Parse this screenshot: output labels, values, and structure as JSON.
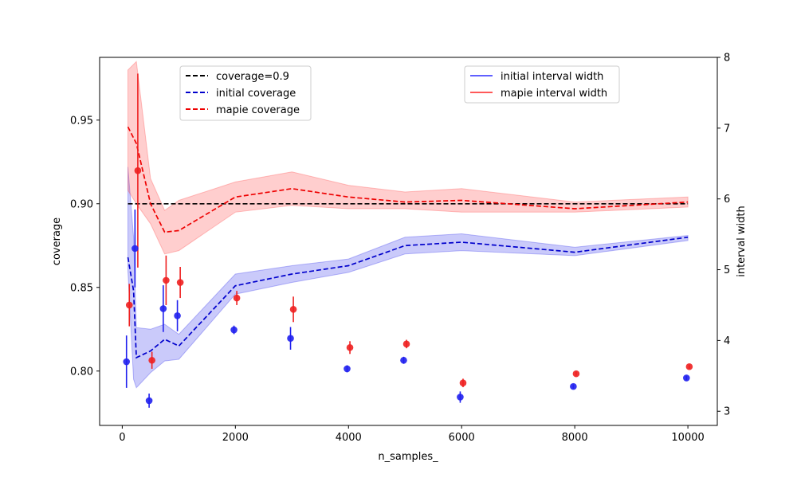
{
  "chart_data": {
    "type": "line",
    "xlabel": "n_samples_",
    "ylabel_left": "coverage",
    "ylabel_right": "interval width",
    "xlim": [
      -400,
      10520
    ],
    "ylim_left": [
      0.7675,
      0.9875
    ],
    "ylim_right": [
      2.8,
      8.0
    ],
    "x_ticks": [
      0,
      2000,
      4000,
      6000,
      8000,
      10000
    ],
    "y_left_ticks": [
      0.8,
      0.85,
      0.9,
      0.95
    ],
    "y_left_tick_labels": [
      "0.80",
      "0.85",
      "0.90",
      "0.95"
    ],
    "y_right_ticks": [
      3,
      4,
      5,
      6,
      7,
      8
    ],
    "grid": false,
    "colors": {
      "target": "#000000",
      "initial": "#0000cc",
      "mapie": "#ee0000",
      "initial_band": "#4040ee",
      "mapie_band": "#ff5050"
    },
    "coverage_target": 0.9,
    "series": [
      {
        "name": "coverage=0.9",
        "axis": "left",
        "style": "dashed",
        "x": [
          100,
          10000
        ],
        "values": [
          0.9,
          0.9
        ]
      },
      {
        "name": "initial coverage",
        "axis": "left",
        "style": "dashed",
        "x": [
          100,
          200,
          250,
          500,
          750,
          1000,
          2000,
          3000,
          4000,
          5000,
          6000,
          8000,
          10000
        ],
        "values": [
          0.868,
          0.848,
          0.808,
          0.812,
          0.819,
          0.815,
          0.851,
          0.858,
          0.863,
          0.875,
          0.877,
          0.871,
          0.88
        ],
        "band_lower": [
          0.86,
          0.795,
          0.79,
          0.799,
          0.806,
          0.807,
          0.846,
          0.853,
          0.859,
          0.87,
          0.872,
          0.869,
          0.878
        ],
        "band_upper": [
          0.922,
          0.88,
          0.826,
          0.825,
          0.828,
          0.822,
          0.858,
          0.863,
          0.867,
          0.88,
          0.882,
          0.874,
          0.881
        ]
      },
      {
        "name": "mapie coverage",
        "axis": "left",
        "style": "dashed",
        "x": [
          100,
          250,
          500,
          750,
          1000,
          2000,
          3000,
          4000,
          5000,
          6000,
          8000,
          10000
        ],
        "values": [
          0.946,
          0.936,
          0.9,
          0.883,
          0.884,
          0.904,
          0.909,
          0.904,
          0.901,
          0.902,
          0.897,
          0.901
        ],
        "band_lower": [
          0.908,
          0.9,
          0.888,
          0.87,
          0.872,
          0.895,
          0.899,
          0.897,
          0.897,
          0.895,
          0.895,
          0.898
        ],
        "band_upper": [
          0.98,
          0.985,
          0.915,
          0.896,
          0.902,
          0.913,
          0.919,
          0.911,
          0.907,
          0.909,
          0.901,
          0.904
        ]
      },
      {
        "name": "initial interval width",
        "axis": "right",
        "style": "errorbar-points",
        "x": [
          75,
          225,
          475,
          725,
          975,
          1975,
          2975,
          3975,
          4975,
          5975,
          7975,
          9975
        ],
        "values": [
          3.7,
          5.3,
          3.15,
          4.45,
          4.35,
          4.15,
          4.03,
          3.6,
          3.72,
          3.2,
          3.35,
          3.47
        ],
        "err": [
          0.37,
          0.55,
          0.1,
          0.33,
          0.22,
          0.06,
          0.16,
          0.05,
          0.05,
          0.08,
          0.03,
          0.03
        ]
      },
      {
        "name": "mapie interval width",
        "axis": "right",
        "style": "errorbar-points",
        "x": [
          125,
          275,
          525,
          775,
          1025,
          2025,
          3025,
          4025,
          5025,
          6025,
          8025,
          10025
        ],
        "values": [
          4.5,
          6.4,
          3.72,
          4.85,
          4.82,
          4.6,
          4.44,
          3.9,
          3.95,
          3.4,
          3.53,
          3.63
        ],
        "err": [
          0.3,
          1.37,
          0.12,
          0.35,
          0.22,
          0.1,
          0.18,
          0.09,
          0.06,
          0.06,
          0.03,
          0.03
        ]
      }
    ],
    "legends": {
      "left": {
        "placement": "upper-left",
        "entries": [
          "coverage=0.9",
          "initial coverage",
          "mapie coverage"
        ]
      },
      "right": {
        "placement": "upper-right",
        "entries": [
          "initial interval width",
          "mapie interval width"
        ]
      }
    }
  }
}
